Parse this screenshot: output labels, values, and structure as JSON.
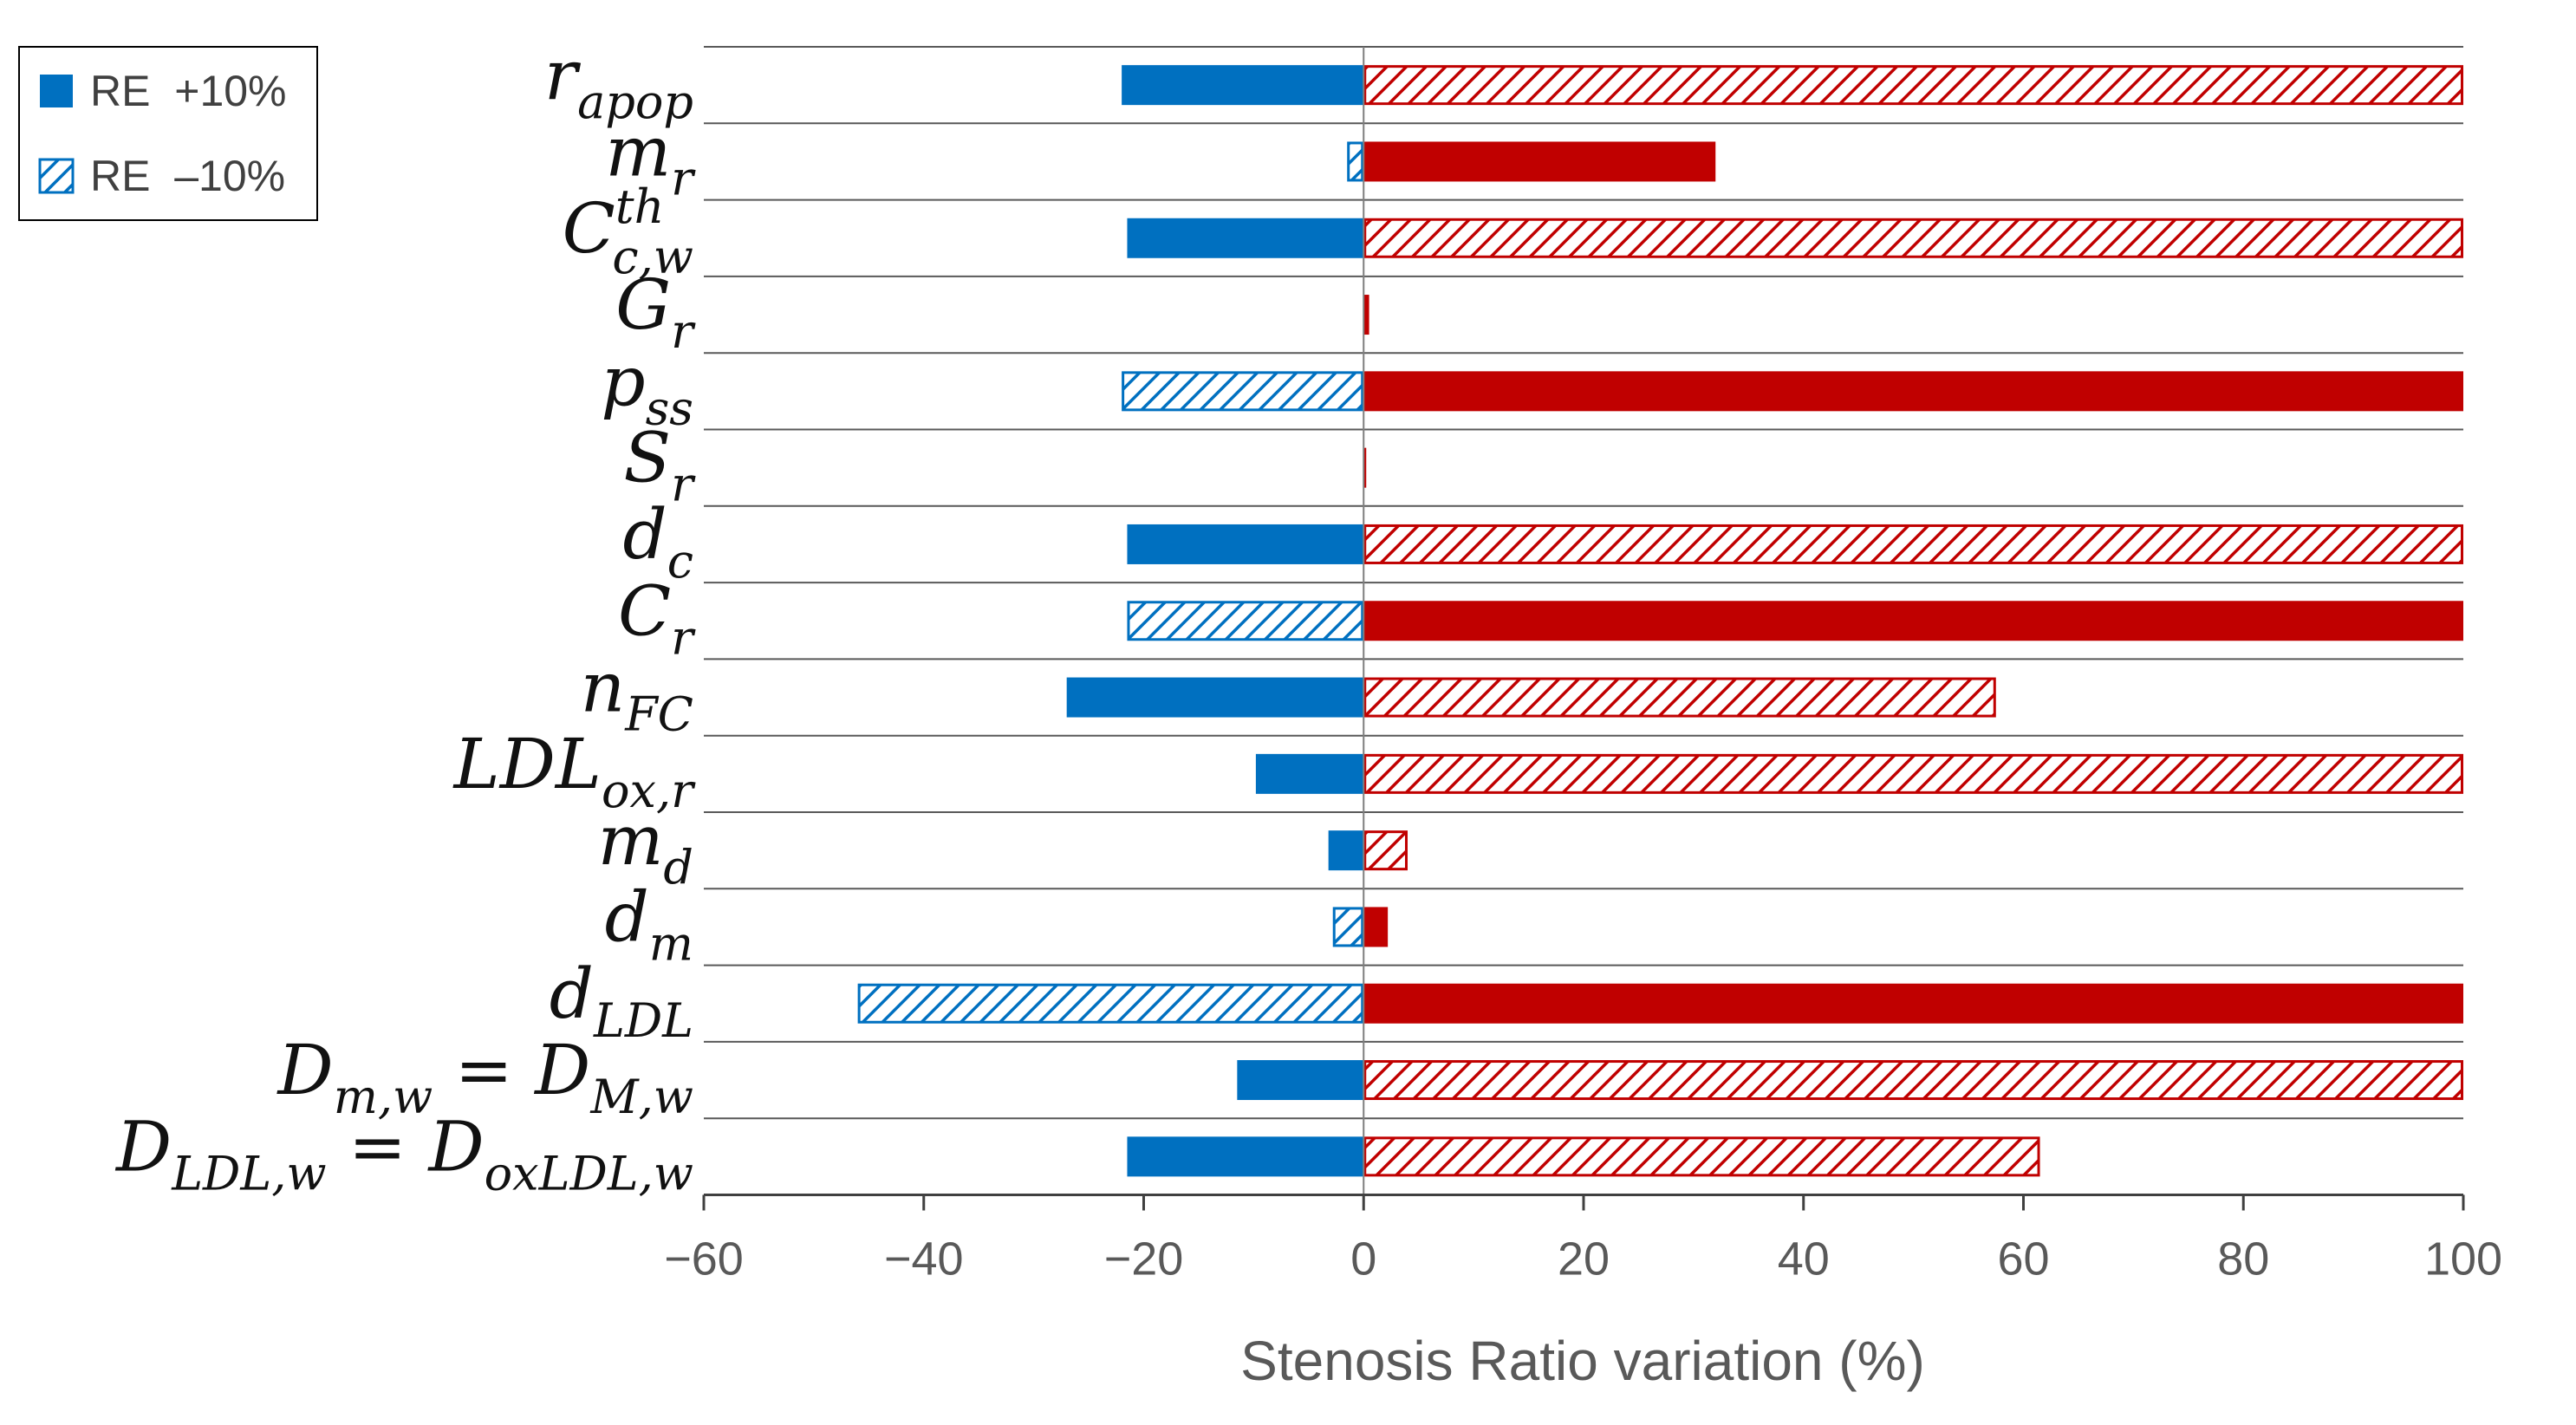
{
  "chart_data": {
    "type": "bar",
    "orientation": "horizontal",
    "title": "",
    "xlabel": "Stenosis Ratio variation (%)",
    "ylabel": "",
    "xlim": [
      -60,
      100
    ],
    "xticks": [
      -60,
      -40,
      -20,
      0,
      20,
      40,
      60,
      80,
      100
    ],
    "xtick_labels": [
      "−60",
      "−40",
      "−20",
      "0",
      "20",
      "40",
      "60",
      "80",
      "100"
    ],
    "legend_position": "top-left",
    "grid": "horizontal lines between categories",
    "legend": [
      {
        "label": "RE  +10%",
        "style": "solid",
        "color": "#0070C0"
      },
      {
        "label": "RE  –10%",
        "style": "hatched",
        "color": "#0070C0"
      }
    ],
    "colors": {
      "negative_variation": "#0070C0",
      "positive_variation": "#C00000"
    },
    "categories": [
      {
        "main": "r",
        "sub": "apop",
        "sup": ""
      },
      {
        "main": "m",
        "sub": "r",
        "sup": ""
      },
      {
        "main": "C",
        "sub": "c,w",
        "sup": "th"
      },
      {
        "main": "G",
        "sub": "r",
        "sup": ""
      },
      {
        "main": "p",
        "sub": "ss",
        "sup": ""
      },
      {
        "main": "S",
        "sub": "r",
        "sup": ""
      },
      {
        "main": "d",
        "sub": "c",
        "sup": ""
      },
      {
        "main": "C",
        "sub": "r",
        "sup": ""
      },
      {
        "main": "n",
        "sub": "FC",
        "sup": ""
      },
      {
        "main": "LDL",
        "sub": "ox,r",
        "sup": ""
      },
      {
        "main": "m",
        "sub": "d",
        "sup": ""
      },
      {
        "main": "d",
        "sub": "m",
        "sup": ""
      },
      {
        "main": "d",
        "sub": "LDL",
        "sup": ""
      },
      {
        "main": "D",
        "sub": "m,w",
        "sup": "",
        "eq_main": "D",
        "eq_sub": "M,w"
      },
      {
        "main": "D",
        "sub": "LDL,w",
        "sup": "",
        "eq_main": "D",
        "eq_sub": "oxLDL,w"
      }
    ],
    "series": [
      {
        "name": "RE  +10%",
        "values": [
          -22,
          32,
          -21.5,
          0.5,
          100,
          0.2,
          -21.5,
          100,
          -27,
          -9.8,
          -3.2,
          2.2,
          100,
          -11.5,
          -21.5
        ]
      },
      {
        "name": "RE  –10%",
        "values": [
          100,
          -1.5,
          100,
          0,
          -22,
          0,
          100,
          -21.5,
          57.5,
          100,
          4,
          -2.8,
          -46,
          100,
          61.5
        ]
      }
    ]
  }
}
